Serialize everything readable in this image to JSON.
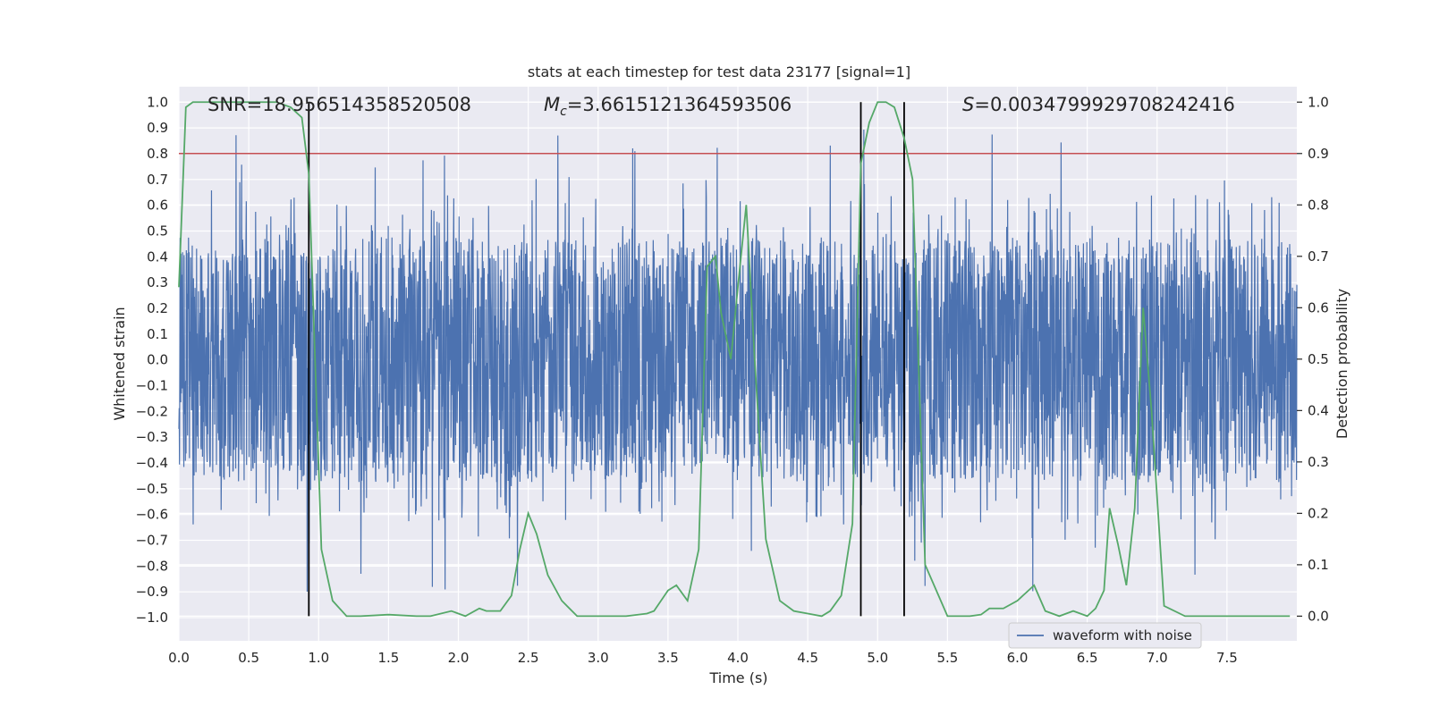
{
  "chart_data": {
    "type": "line",
    "title": "stats at each timestep for test data 23177 [signal=1]",
    "xlabel": "Time (s)",
    "ylabel_left": "Whitened strain",
    "ylabel_right": "Detection probability",
    "xlim": [
      0.0,
      8.0
    ],
    "ylim_left": [
      -1.09,
      1.06
    ],
    "ylim_right": [
      -0.048,
      1.03
    ],
    "x_ticks": [
      "0.0",
      "0.5",
      "1.0",
      "1.5",
      "2.0",
      "2.5",
      "3.0",
      "3.5",
      "4.0",
      "4.5",
      "5.0",
      "5.5",
      "6.0",
      "6.5",
      "7.0",
      "7.5"
    ],
    "x_tick_values": [
      0,
      0.5,
      1,
      1.5,
      2,
      2.5,
      3,
      3.5,
      4,
      4.5,
      5,
      5.5,
      6,
      6.5,
      7,
      7.5
    ],
    "y_ticks_left": [
      "1.0",
      "0.9",
      "0.8",
      "0.7",
      "0.6",
      "0.5",
      "0.4",
      "0.3",
      "0.2",
      "0.1",
      "0.0",
      "−0.1",
      "−0.2",
      "−0.3",
      "−0.4",
      "−0.5",
      "−0.6",
      "−0.7",
      "−0.8",
      "−0.9",
      "−1.0"
    ],
    "y_tick_values_left": [
      1.0,
      0.9,
      0.8,
      0.7,
      0.6,
      0.5,
      0.4,
      0.3,
      0.2,
      0.1,
      0.0,
      -0.1,
      -0.2,
      -0.3,
      -0.4,
      -0.5,
      -0.6,
      -0.7,
      -0.8,
      -0.9,
      -1.0
    ],
    "y_ticks_right": [
      "1.0",
      "0.9",
      "0.8",
      "0.7",
      "0.6",
      "0.5",
      "0.4",
      "0.3",
      "0.2",
      "0.1",
      "0.0"
    ],
    "y_tick_values_right": [
      1.0,
      0.9,
      0.8,
      0.7,
      0.6,
      0.5,
      0.4,
      0.3,
      0.2,
      0.1,
      0.0
    ],
    "annotations": {
      "snr": "SNR=18.956514358520508",
      "mc_symbol": "M",
      "mc_sub": "c",
      "mc_value": "=3.6615121364593506",
      "s_symbol": "S",
      "s_value": "=0.0034799929708242416"
    },
    "legend": {
      "label": "waveform with noise",
      "placement": "lower-right"
    },
    "colors": {
      "waveform": "#4c72b0",
      "probability": "#55a868",
      "threshold": "#c44e52",
      "markers": "#000000",
      "plot_bg": "#eaeaf2",
      "grid": "#ffffff"
    },
    "threshold": 0.9,
    "vertical_lines_x": [
      0.93,
      4.88,
      5.19
    ],
    "waveform": {
      "description_series": "whitened strain noise, envelope ±0.6 with spikes to ±0.9",
      "duration_s": 8.0,
      "seed": 23177
    },
    "series": [
      {
        "name": "detection probability",
        "x": [
          0.0,
          0.05,
          0.1,
          0.2,
          0.3,
          0.4,
          0.5,
          0.6,
          0.7,
          0.8,
          0.88,
          0.93,
          1.02,
          1.1,
          1.2,
          1.3,
          1.5,
          1.7,
          1.8,
          1.95,
          2.05,
          2.15,
          2.2,
          2.3,
          2.38,
          2.44,
          2.5,
          2.56,
          2.64,
          2.74,
          2.85,
          3.0,
          3.2,
          3.35,
          3.4,
          3.5,
          3.56,
          3.64,
          3.72,
          3.78,
          3.84,
          3.88,
          3.95,
          4.0,
          4.06,
          4.12,
          4.2,
          4.3,
          4.4,
          4.5,
          4.6,
          4.66,
          4.74,
          4.82,
          4.88,
          4.94,
          5.0,
          5.06,
          5.12,
          5.19,
          5.25,
          5.34,
          5.5,
          5.66,
          5.74,
          5.8,
          5.9,
          6.0,
          6.06,
          6.12,
          6.2,
          6.3,
          6.4,
          6.5,
          6.56,
          6.62,
          6.66,
          6.72,
          6.78,
          6.84,
          6.9,
          6.96,
          7.05,
          7.2,
          7.5,
          7.8,
          7.95
        ],
        "values": [
          0.64,
          0.99,
          1.0,
          1.0,
          1.0,
          1.0,
          1.0,
          1.0,
          1.0,
          0.99,
          0.97,
          0.86,
          0.13,
          0.03,
          0.0,
          0.0,
          0.003,
          0.0,
          0.0,
          0.01,
          0.0,
          0.015,
          0.01,
          0.01,
          0.04,
          0.13,
          0.2,
          0.16,
          0.08,
          0.03,
          0.0,
          0.0,
          0.0,
          0.005,
          0.01,
          0.05,
          0.06,
          0.03,
          0.13,
          0.68,
          0.7,
          0.59,
          0.5,
          0.64,
          0.8,
          0.5,
          0.15,
          0.03,
          0.01,
          0.005,
          0.0,
          0.01,
          0.04,
          0.18,
          0.88,
          0.96,
          1.0,
          1.0,
          0.99,
          0.93,
          0.85,
          0.1,
          0.0,
          0.0,
          0.003,
          0.015,
          0.015,
          0.03,
          0.045,
          0.06,
          0.01,
          0.0,
          0.01,
          0.0,
          0.015,
          0.05,
          0.21,
          0.14,
          0.06,
          0.21,
          0.6,
          0.4,
          0.02,
          0.0,
          0.0,
          0.0,
          0.0
        ]
      }
    ]
  }
}
